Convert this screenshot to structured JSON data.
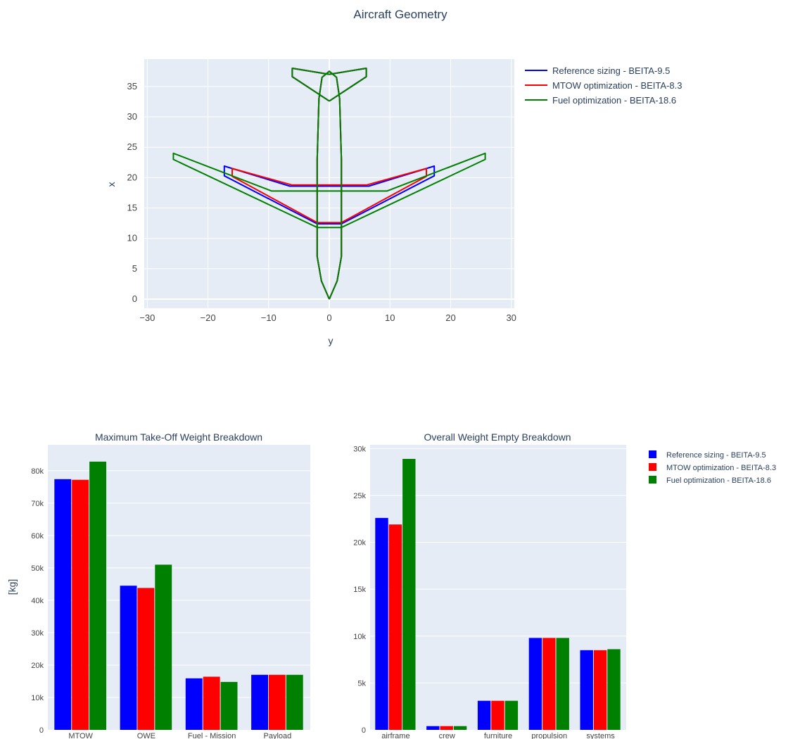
{
  "figure": {
    "title": "Aircraft Geometry"
  },
  "colors": {
    "reference": "#0000ff",
    "mtow": "#ff0000",
    "fuel": "#008000"
  },
  "chart_data": [
    {
      "type": "line",
      "title": "Aircraft Geometry",
      "xlabel": "y",
      "ylabel": "x",
      "xlim": [
        -30.5,
        30.5
      ],
      "ylim": [
        -1.5,
        39.5
      ],
      "xticks": [
        "−30",
        "−20",
        "−10",
        "0",
        "10",
        "20",
        "30"
      ],
      "xtick_values": [
        -30,
        -20,
        -10,
        0,
        10,
        20,
        30
      ],
      "yticks": [
        "0",
        "5",
        "10",
        "15",
        "20",
        "25",
        "30",
        "35"
      ],
      "ytick_values": [
        0,
        5,
        10,
        15,
        20,
        25,
        30,
        35
      ],
      "grid": true,
      "legend_position": "top-right",
      "series": [
        {
          "name": "Reference sizing - BEITA-9.5",
          "color": "#0000ff",
          "wing": [
            [
              2,
              12.4
            ],
            [
              17.3,
              20.3
            ],
            [
              17.3,
              21.9
            ],
            [
              6.5,
              18.6
            ],
            [
              -6.5,
              18.6
            ],
            [
              -17.3,
              21.9
            ],
            [
              -17.3,
              20.3
            ],
            [
              -2,
              12.4
            ],
            [
              2,
              12.4
            ]
          ],
          "fuselage": [
            [
              0,
              0
            ],
            [
              1.3,
              3
            ],
            [
              2,
              7
            ],
            [
              2,
              23
            ],
            [
              1.7,
              33
            ],
            [
              1.2,
              36.5
            ],
            [
              0,
              37.5
            ],
            [
              -1.2,
              36.5
            ],
            [
              -1.7,
              33
            ],
            [
              -2,
              23
            ],
            [
              -2,
              7
            ],
            [
              -1.3,
              3
            ],
            [
              0,
              0
            ]
          ],
          "htail": [
            [
              0,
              32.6
            ],
            [
              6.1,
              36.6
            ],
            [
              6.1,
              38
            ],
            [
              0,
              37
            ],
            [
              -6.1,
              38
            ],
            [
              -6.1,
              36.6
            ],
            [
              0,
              32.6
            ]
          ]
        },
        {
          "name": "MTOW optimization - BEITA-8.3",
          "color": "#ff0000",
          "wing": [
            [
              2,
              12.6
            ],
            [
              16,
              20.2
            ],
            [
              16,
              21.5
            ],
            [
              6.2,
              18.8
            ],
            [
              -6.2,
              18.8
            ],
            [
              -16,
              21.5
            ],
            [
              -16,
              20.2
            ],
            [
              -2,
              12.6
            ],
            [
              2,
              12.6
            ]
          ],
          "fuselage": [
            [
              0,
              0
            ],
            [
              1.3,
              3
            ],
            [
              2,
              7
            ],
            [
              2,
              23
            ],
            [
              1.7,
              33
            ],
            [
              1.2,
              36.5
            ],
            [
              0,
              37.5
            ],
            [
              -1.2,
              36.5
            ],
            [
              -1.7,
              33
            ],
            [
              -2,
              23
            ],
            [
              -2,
              7
            ],
            [
              -1.3,
              3
            ],
            [
              0,
              0
            ]
          ],
          "htail": [
            [
              0,
              32.6
            ],
            [
              6.1,
              36.6
            ],
            [
              6.1,
              38
            ],
            [
              0,
              37
            ],
            [
              -6.1,
              38
            ],
            [
              -6.1,
              36.6
            ],
            [
              0,
              32.6
            ]
          ]
        },
        {
          "name": "Fuel optimization - BEITA-18.6",
          "color": "#008000",
          "wing": [
            [
              2,
              11.8
            ],
            [
              25.7,
              23
            ],
            [
              25.7,
              24
            ],
            [
              9.5,
              17.8
            ],
            [
              -9.5,
              17.8
            ],
            [
              -25.7,
              24
            ],
            [
              -25.7,
              23
            ],
            [
              -2,
              11.8
            ],
            [
              2,
              11.8
            ]
          ],
          "fuselage": [
            [
              0,
              0
            ],
            [
              1.3,
              3
            ],
            [
              2,
              7
            ],
            [
              2,
              23
            ],
            [
              1.7,
              33
            ],
            [
              1.2,
              36.5
            ],
            [
              0,
              37.5
            ],
            [
              -1.2,
              36.5
            ],
            [
              -1.7,
              33
            ],
            [
              -2,
              23
            ],
            [
              -2,
              7
            ],
            [
              -1.3,
              3
            ],
            [
              0,
              0
            ]
          ],
          "htail": [
            [
              0,
              32.6
            ],
            [
              6.1,
              36.6
            ],
            [
              6.1,
              38
            ],
            [
              0,
              37
            ],
            [
              -6.1,
              38
            ],
            [
              -6.1,
              36.6
            ],
            [
              0,
              32.6
            ]
          ]
        }
      ]
    },
    {
      "type": "bar",
      "title": "Maximum Take-Off Weight Breakdown",
      "ylabel": "[kg]",
      "categories": [
        "MTOW",
        "OWE",
        "Fuel - Mission",
        "Payload"
      ],
      "ylim": [
        0,
        88000
      ],
      "yticks": [
        "0",
        "10k",
        "20k",
        "30k",
        "40k",
        "50k",
        "60k",
        "70k",
        "80k"
      ],
      "ytick_values": [
        0,
        10000,
        20000,
        30000,
        40000,
        50000,
        60000,
        70000,
        80000
      ],
      "series": [
        {
          "name": "Reference sizing - BEITA-9.5",
          "color": "#0000ff",
          "values": [
            77400,
            44500,
            15900,
            17000
          ]
        },
        {
          "name": "MTOW optimization - BEITA-8.3",
          "color": "#ff0000",
          "values": [
            77200,
            43800,
            16400,
            17000
          ]
        },
        {
          "name": "Fuel optimization - BEITA-18.6",
          "color": "#008000",
          "values": [
            82800,
            51000,
            14800,
            17000
          ]
        }
      ]
    },
    {
      "type": "bar",
      "title": "Overall Weight Empty Breakdown",
      "categories": [
        "airframe",
        "crew",
        "furniture",
        "propulsion",
        "systems"
      ],
      "ylim": [
        0,
        30400
      ],
      "yticks": [
        "0",
        "5k",
        "10k",
        "15k",
        "20k",
        "25k",
        "30k"
      ],
      "ytick_values": [
        0,
        5000,
        10000,
        15000,
        20000,
        25000,
        30000
      ],
      "legend_position": "top-right",
      "series": [
        {
          "name": "Reference sizing - BEITA-9.5",
          "color": "#0000ff",
          "values": [
            22600,
            400,
            3100,
            9800,
            8500
          ]
        },
        {
          "name": "MTOW optimization - BEITA-8.3",
          "color": "#ff0000",
          "values": [
            21900,
            400,
            3100,
            9800,
            8500
          ]
        },
        {
          "name": "Fuel optimization - BEITA-18.6",
          "color": "#008000",
          "values": [
            28900,
            400,
            3100,
            9800,
            8600
          ]
        }
      ]
    }
  ]
}
